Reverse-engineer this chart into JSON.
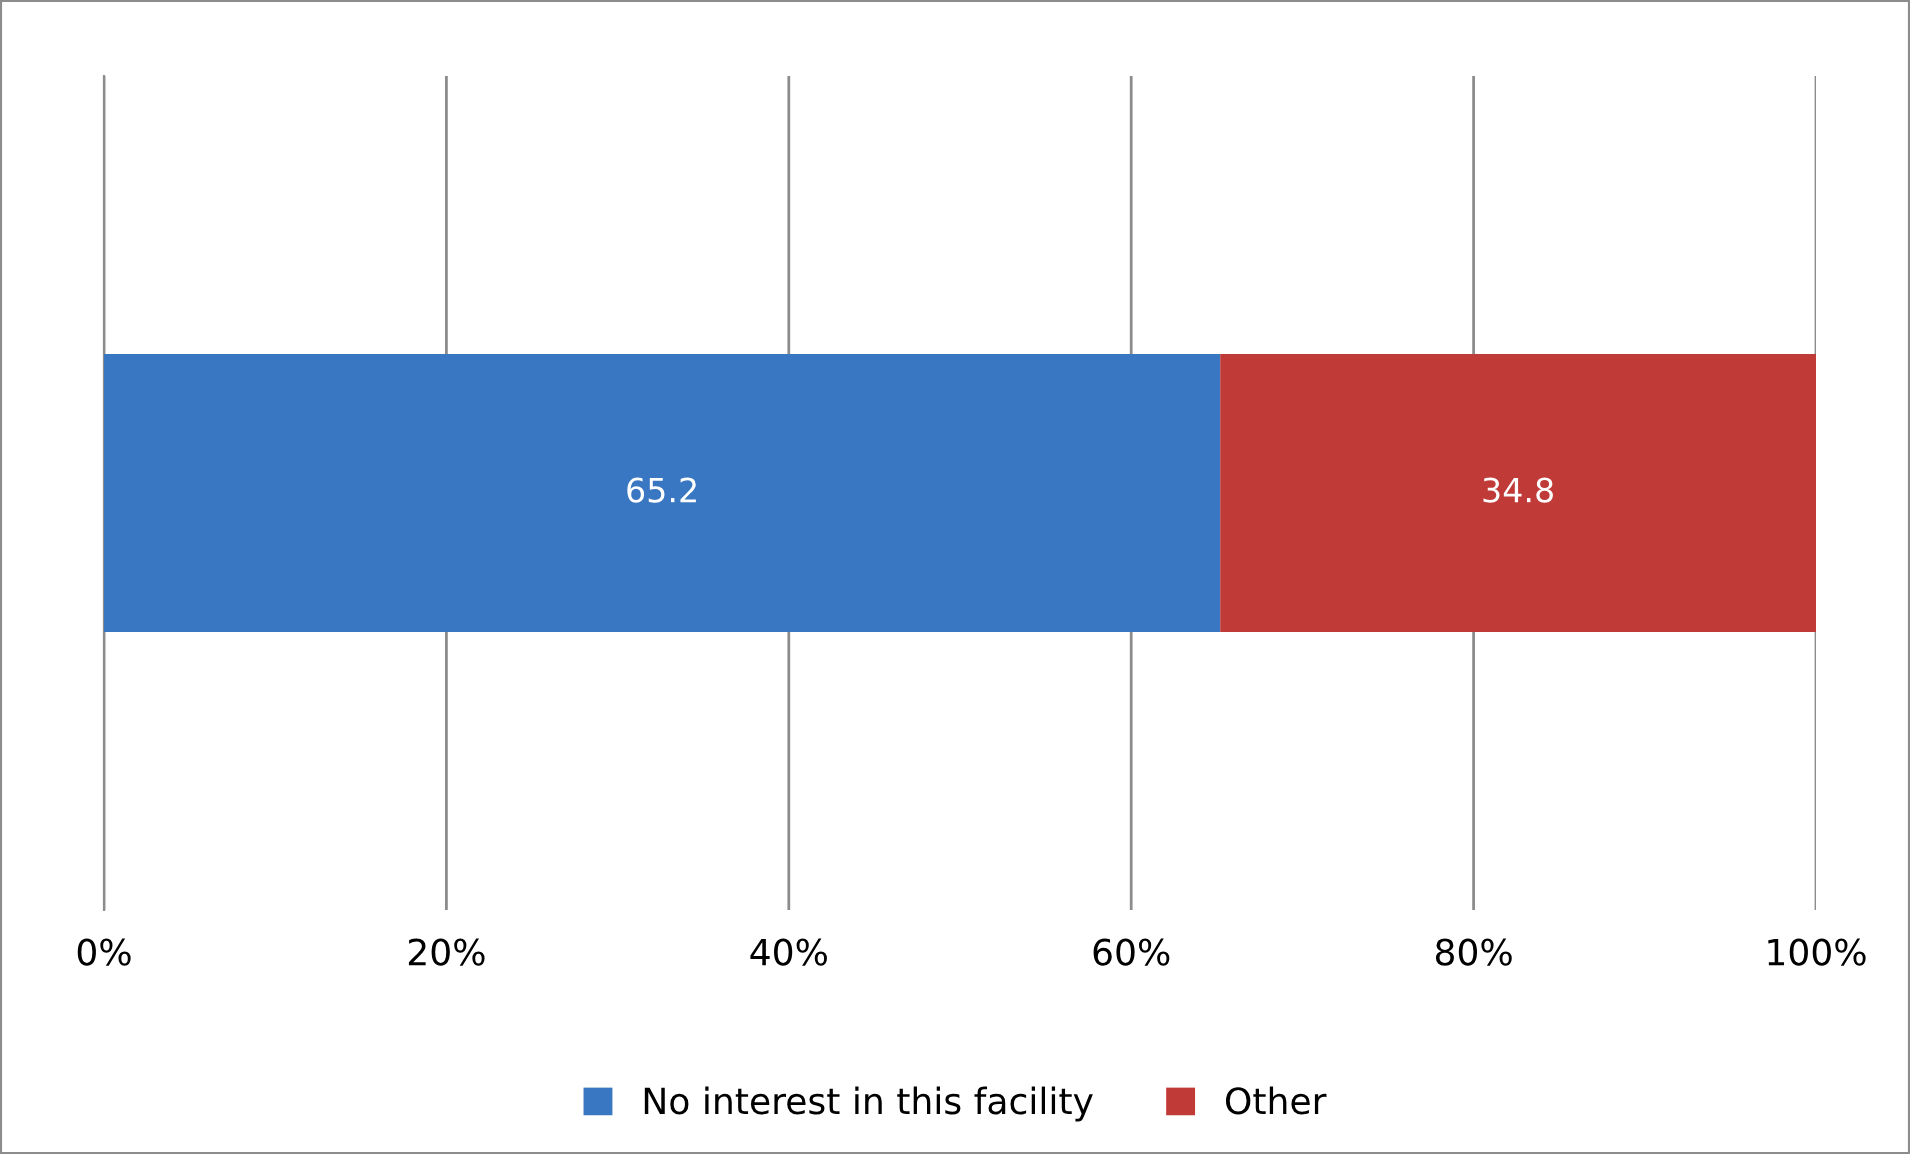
{
  "chart_data": {
    "type": "bar",
    "orientation": "horizontal",
    "stacked": true,
    "categories": [
      null
    ],
    "series": [
      {
        "name": "No interest in this facility",
        "color": "#3a77c2",
        "values": [
          65.2
        ]
      },
      {
        "name": "Other",
        "color": "#c03a37",
        "values": [
          34.8
        ]
      }
    ],
    "xlim": [
      0,
      100
    ],
    "xticks": [
      {
        "value": 0,
        "label": "0%"
      },
      {
        "value": 20,
        "label": "20%"
      },
      {
        "value": 40,
        "label": "40%"
      },
      {
        "value": 60,
        "label": "60%"
      },
      {
        "value": 80,
        "label": "80%"
      },
      {
        "value": 100,
        "label": "100%"
      }
    ],
    "grid": "x",
    "legend": "bottom",
    "data_labels": true
  }
}
